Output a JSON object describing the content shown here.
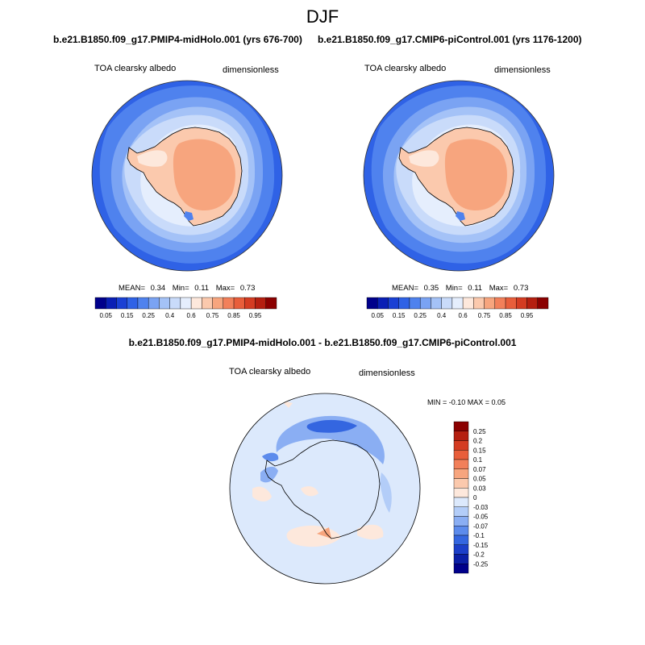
{
  "season": "DJF",
  "panels": [
    {
      "case": "b.e21.B1850.f09_g17.PMIP4-midHolo.001 (yrs 676-700)",
      "variable": "TOA clearsky albedo",
      "units": "dimensionless",
      "stats": {
        "mean_label": "MEAN=",
        "mean": "0.34",
        "min_label": "Min=",
        "min": "0.11",
        "max_label": "Max=",
        "max": "0.73"
      }
    },
    {
      "case": "b.e21.B1850.f09_g17.CMIP6-piControl.001 (yrs 1176-1200)",
      "variable": "TOA clearsky albedo",
      "units": "dimensionless",
      "stats": {
        "mean_label": "MEAN=",
        "mean": "0.35",
        "min_label": "Min=",
        "min": "0.11",
        "max_label": "Max=",
        "max": "0.73"
      }
    }
  ],
  "difference": {
    "title": "b.e21.B1850.f09_g17.PMIP4-midHolo.001 - b.e21.B1850.f09_g17.CMIP6-piControl.001",
    "variable": "TOA clearsky albedo",
    "units": "dimensionless",
    "range_text": "MIN =  -0.10 MAX =   0.05"
  },
  "colorbar_abs": {
    "labels": [
      "0.05",
      "0.15",
      "0.25",
      "0.4",
      "0.6",
      "0.75",
      "0.85",
      "0.95"
    ],
    "colors": [
      "#00008b",
      "#0a1fb5",
      "#1a40d4",
      "#2f62e6",
      "#4f82ee",
      "#7aa3f3",
      "#a4c2f7",
      "#c9dbfa",
      "#e5eefd",
      "#fde8dc",
      "#fbc9ad",
      "#f7a57e",
      "#f2805a",
      "#e85e3b",
      "#d43c22",
      "#b51f10",
      "#8b0000"
    ]
  },
  "colorbar_diff": {
    "labels": [
      "0.25",
      "0.2",
      "0.15",
      "0.1",
      "0.07",
      "0.05",
      "0.03",
      "0",
      "-0.03",
      "-0.05",
      "-0.07",
      "-0.1",
      "-0.15",
      "-0.2",
      "-0.25"
    ],
    "colors": [
      "#8b0000",
      "#b51f10",
      "#d43c22",
      "#e85e3b",
      "#f2805a",
      "#f7a57e",
      "#fbc9ad",
      "#fde8dc",
      "#dce9fc",
      "#b3cdf8",
      "#8aaef3",
      "#5c8bec",
      "#3466e0",
      "#1c3fc9",
      "#0b1fa6",
      "#00008b"
    ]
  }
}
